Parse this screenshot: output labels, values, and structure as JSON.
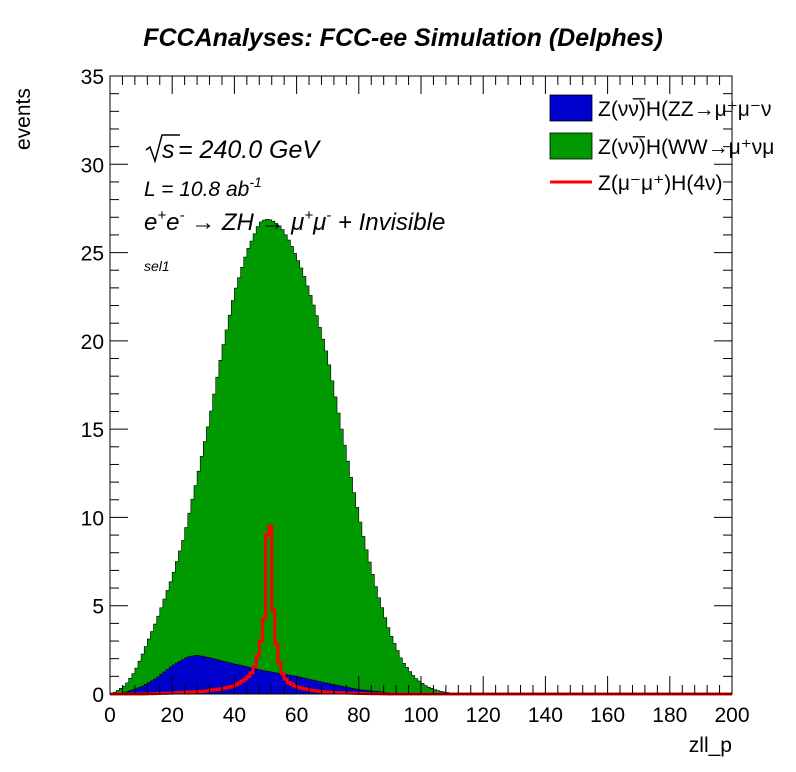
{
  "chart_data": {
    "type": "histogram",
    "title": "FCCAnalyses: FCC-ee Simulation (Delphes)",
    "xlabel": "zll_p",
    "ylabel": "events",
    "xlim": [
      0,
      200
    ],
    "ylim": [
      0,
      35
    ],
    "x_ticks": [
      0,
      20,
      40,
      60,
      80,
      100,
      120,
      140,
      160,
      180,
      200
    ],
    "y_ticks": [
      0,
      5,
      10,
      15,
      20,
      25,
      30,
      35
    ],
    "stacked": true,
    "annotations": {
      "sqrt_s": "s",
      "energy": " = 240.0 GeV",
      "lumi_prefix": "L = 10.8 ab",
      "lumi_exp": "-1",
      "process_e1": "e",
      "process_e1_sup": "+",
      "process_e2": "e",
      "process_e2_sup": "-",
      "process_arrow1": " → ZH  → ",
      "process_mu1": "μ",
      "process_mu1_sup": "+",
      "process_mu2": "μ",
      "process_mu2_sup": "-",
      "process_tail": " + Invisible",
      "selection": "sel1"
    },
    "legend_position": "top-right",
    "series": [
      {
        "name": "Z(νν̅)H(ZZ→μ⁺μ⁻ν",
        "style": "filled",
        "color": "#0000cc",
        "points": [
          [
            0,
            0
          ],
          [
            5,
            0.1
          ],
          [
            10,
            0.4
          ],
          [
            15,
            0.9
          ],
          [
            20,
            1.6
          ],
          [
            25,
            2.1
          ],
          [
            28,
            2.2
          ],
          [
            32,
            2.05
          ],
          [
            40,
            1.7
          ],
          [
            50,
            1.3
          ],
          [
            60,
            1.0
          ],
          [
            70,
            0.6
          ],
          [
            80,
            0.25
          ],
          [
            90,
            0.07
          ],
          [
            100,
            0.02
          ],
          [
            110,
            0
          ],
          [
            200,
            0
          ]
        ]
      },
      {
        "name": "Z(νν̅)H(WW→μ⁺νμ",
        "style": "filled",
        "color": "#009900",
        "points": [
          [
            0,
            0
          ],
          [
            2,
            0.1
          ],
          [
            5,
            0.4
          ],
          [
            8,
            1.0
          ],
          [
            12,
            2.3
          ],
          [
            16,
            3.6
          ],
          [
            20,
            5.0
          ],
          [
            24,
            7.0
          ],
          [
            28,
            10.0
          ],
          [
            32,
            13.5
          ],
          [
            36,
            17.5
          ],
          [
            40,
            21.0
          ],
          [
            44,
            23.5
          ],
          [
            48,
            25.3
          ],
          [
            50,
            25.6
          ],
          [
            52,
            25.6
          ],
          [
            55,
            25.3
          ],
          [
            58,
            24.5
          ],
          [
            62,
            23.0
          ],
          [
            66,
            21.0
          ],
          [
            70,
            18.5
          ],
          [
            74,
            15.0
          ],
          [
            78,
            11.5
          ],
          [
            82,
            8.3
          ],
          [
            86,
            5.6
          ],
          [
            90,
            3.4
          ],
          [
            94,
            1.8
          ],
          [
            98,
            0.9
          ],
          [
            102,
            0.4
          ],
          [
            106,
            0.15
          ],
          [
            110,
            0.05
          ],
          [
            115,
            0
          ],
          [
            200,
            0
          ]
        ]
      },
      {
        "name": "Z(μ⁻μ⁺)H(4ν)",
        "style": "line",
        "color": "#ff0000",
        "points": [
          [
            0,
            0
          ],
          [
            10,
            0
          ],
          [
            20,
            0.05
          ],
          [
            30,
            0.15
          ],
          [
            36,
            0.3
          ],
          [
            40,
            0.45
          ],
          [
            44,
            0.9
          ],
          [
            46,
            1.3
          ],
          [
            47,
            1.8
          ],
          [
            48,
            2.5
          ],
          [
            49,
            3.5
          ],
          [
            50,
            5.0
          ],
          [
            50.5,
            9.0
          ],
          [
            51,
            11.7
          ],
          [
            51.5,
            9.5
          ],
          [
            52,
            6.0
          ],
          [
            53,
            3.5
          ],
          [
            54,
            2.2
          ],
          [
            55,
            1.3
          ],
          [
            57,
            0.7
          ],
          [
            60,
            0.4
          ],
          [
            65,
            0.2
          ],
          [
            70,
            0.1
          ],
          [
            80,
            0.03
          ],
          [
            90,
            0
          ],
          [
            200,
            0
          ]
        ]
      }
    ]
  }
}
